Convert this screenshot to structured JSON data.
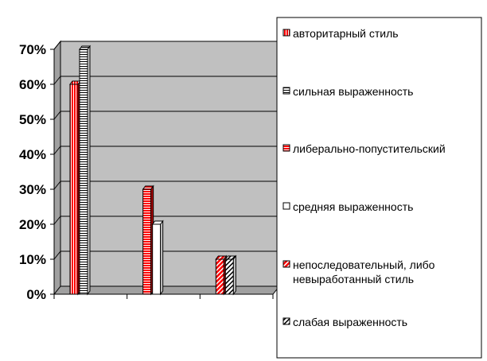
{
  "chart_data": {
    "type": "bar",
    "categories": [
      "",
      "",
      ""
    ],
    "series": [
      {
        "name": "авторитарный стиль",
        "values": [
          60,
          null,
          null
        ],
        "color": "#ff0000",
        "pattern": "vertical-lines"
      },
      {
        "name": "сильная выраженность",
        "values": [
          70,
          null,
          null
        ],
        "color": "#ffffff",
        "pattern": "horizontal-lines"
      },
      {
        "name": "либерально-попустительский",
        "values": [
          null,
          30,
          null
        ],
        "color": "#ff0000",
        "pattern": "horizontal-lines"
      },
      {
        "name": "средняя выраженность",
        "values": [
          null,
          20,
          null
        ],
        "color": "#ffffff",
        "pattern": "solid"
      },
      {
        "name": "непоследовательный, либо невыработанный стиль",
        "values": [
          null,
          null,
          10
        ],
        "color": "#ff0000",
        "pattern": "diagonal-lines"
      },
      {
        "name": "слабая выраженность",
        "values": [
          null,
          null,
          10
        ],
        "color": "#ffffff",
        "pattern": "diagonal-lines"
      }
    ],
    "y_ticks": [
      "0%",
      "10%",
      "20%",
      "30%",
      "40%",
      "50%",
      "60%",
      "70%"
    ],
    "ylim": [
      0,
      70
    ],
    "y_unit": "%",
    "grid": true,
    "legend_position": "right",
    "title": "",
    "xlabel": "",
    "ylabel": "",
    "colors": {
      "plot_background": "#c0c0c0",
      "accent_red": "#ff0000",
      "gridline": "#000000"
    }
  }
}
